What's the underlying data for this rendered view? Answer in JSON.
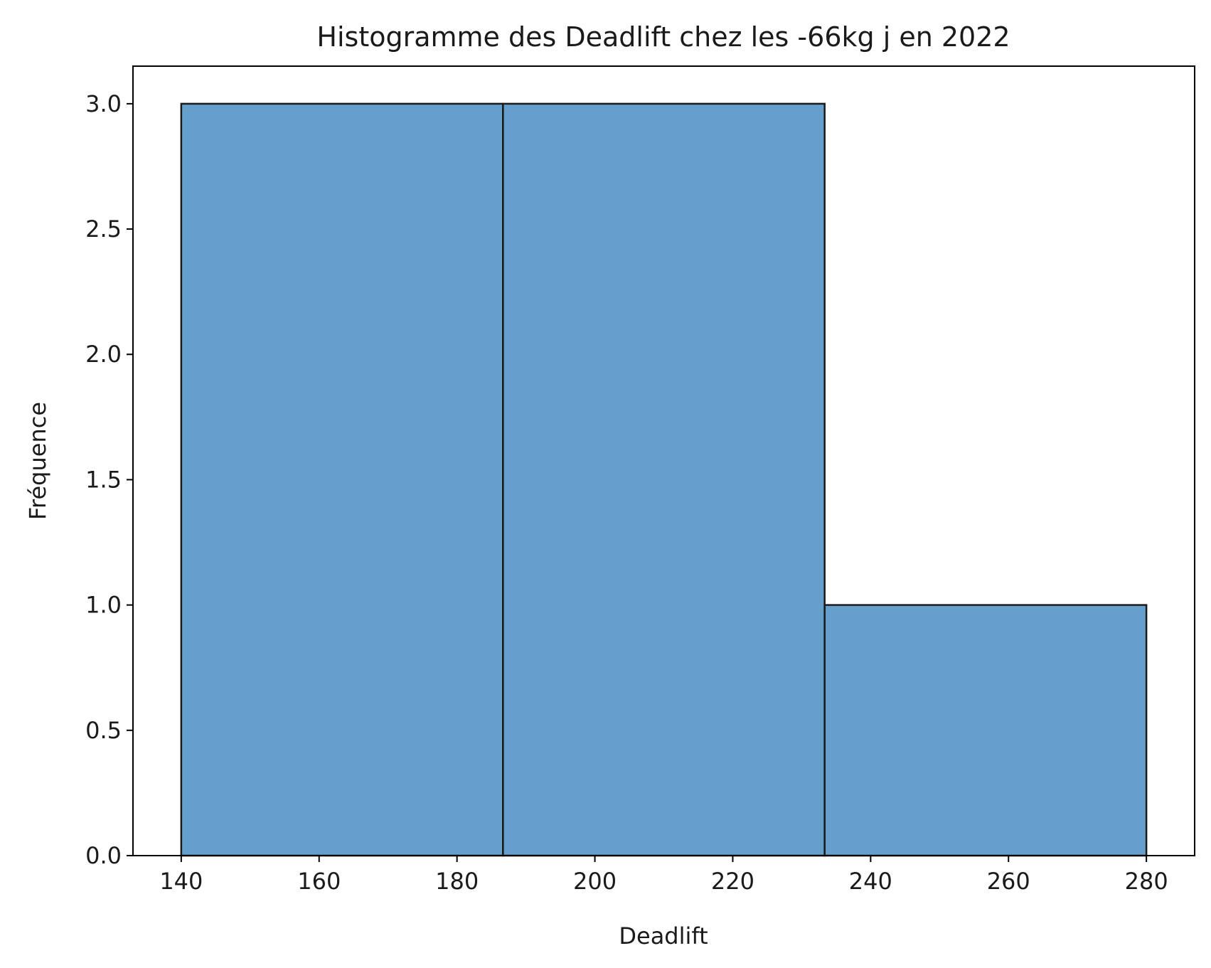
{
  "chart_data": {
    "type": "bar",
    "subtype": "histogram",
    "title": "Histogramme des Deadlift chez les -66kg j en 2022",
    "xlabel": "Deadlift",
    "ylabel": "Fréquence",
    "bins": [
      {
        "start": 140,
        "end": 186.67,
        "count": 3
      },
      {
        "start": 186.67,
        "end": 233.33,
        "count": 3
      },
      {
        "start": 233.33,
        "end": 280,
        "count": 1
      }
    ],
    "xlim": [
      133,
      287
    ],
    "ylim": [
      0,
      3.15
    ],
    "xticks": [
      140,
      160,
      180,
      200,
      220,
      240,
      260,
      280
    ],
    "yticks": [
      0.0,
      0.5,
      1.0,
      1.5,
      2.0,
      2.5,
      3.0
    ],
    "bar_color": "#4a8ec2",
    "bar_edge_color": "#1a1a1a",
    "grid": false,
    "legend": "none"
  }
}
